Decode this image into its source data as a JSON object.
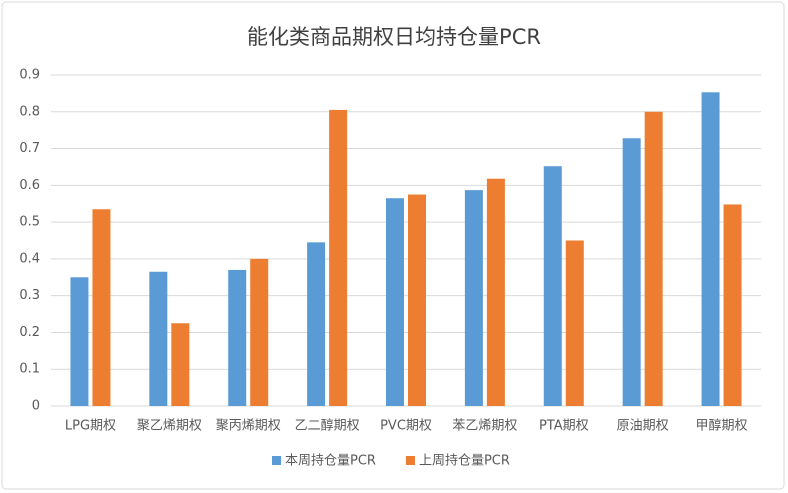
{
  "chart_data": {
    "type": "bar",
    "title": "能化类商品期权日均持仓量PCR",
    "categories": [
      "LPG期权",
      "聚乙烯期权",
      "聚丙烯期权",
      "乙二醇期权",
      "PVC期权",
      "苯乙烯期权",
      "PTA期权",
      "原油期权",
      "甲醇期权"
    ],
    "series": [
      {
        "name": "本周持仓量PCR",
        "color": "#5b9bd5",
        "values": [
          0.35,
          0.365,
          0.37,
          0.445,
          0.565,
          0.587,
          0.652,
          0.728,
          0.853
        ]
      },
      {
        "name": "上周持仓量PCR",
        "color": "#ed7d31",
        "values": [
          0.535,
          0.225,
          0.4,
          0.805,
          0.575,
          0.618,
          0.45,
          0.8,
          0.548
        ]
      }
    ],
    "ylim": [
      0,
      0.9
    ],
    "yticks": [
      0,
      0.1,
      0.2,
      0.3,
      0.4,
      0.5,
      0.6,
      0.7,
      0.8,
      0.9
    ],
    "grid": true,
    "legend": "bottom"
  }
}
